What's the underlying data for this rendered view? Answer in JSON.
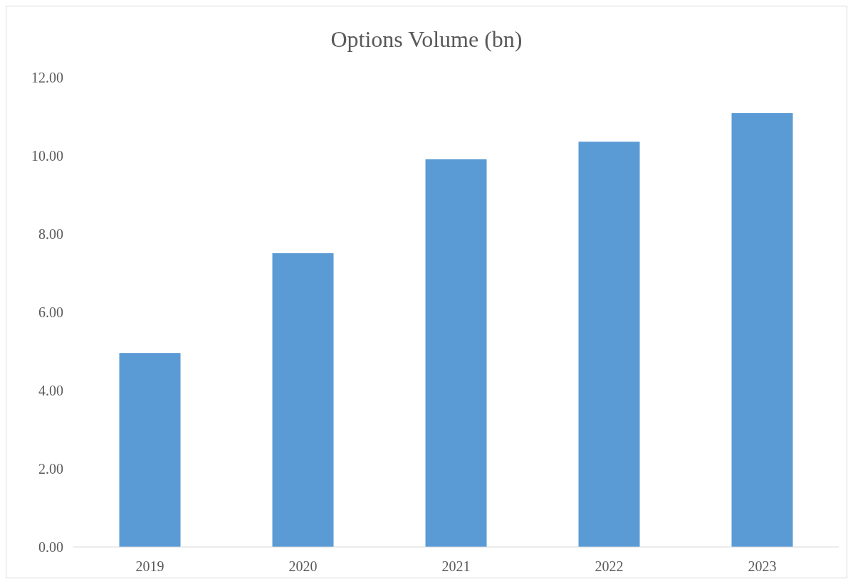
{
  "chart_data": {
    "type": "bar",
    "title": "Options Volume (bn)",
    "categories": [
      "2019",
      "2020",
      "2021",
      "2022",
      "2023"
    ],
    "values": [
      4.96,
      7.51,
      9.91,
      10.36,
      11.09
    ],
    "color": "#5b9bd5",
    "ylim": [
      0,
      12
    ],
    "yticks": [
      {
        "value": 0,
        "label": "0.00"
      },
      {
        "value": 2,
        "label": "2.00"
      },
      {
        "value": 4,
        "label": "4.00"
      },
      {
        "value": 6,
        "label": "6.00"
      },
      {
        "value": 8,
        "label": "8.00"
      },
      {
        "value": 10,
        "label": "10.00"
      },
      {
        "value": 12,
        "label": "12.00"
      }
    ],
    "grid": false
  }
}
